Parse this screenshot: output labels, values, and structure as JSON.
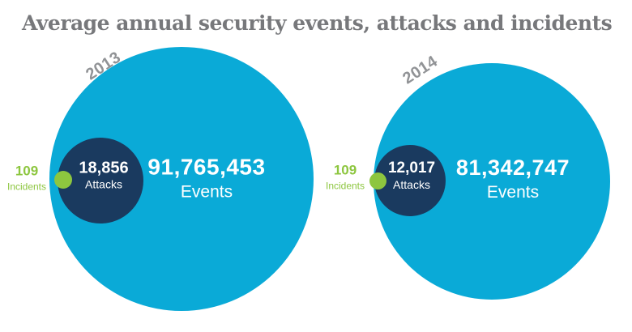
{
  "title": "Average annual security events, attacks and incidents",
  "colors": {
    "events_blue": "#0aaad7",
    "attacks_navy": "#1a3a5f",
    "incidents_green": "#8dc63f",
    "title_gray": "#77787b",
    "year_gray": "#919396",
    "circle_text_white": "#ffffff"
  },
  "chart_data": {
    "type": "bubble",
    "title": "Average annual security events, attacks and incidents",
    "legend_position": "none",
    "grid": false,
    "groups": [
      {
        "year": "2013",
        "events": {
          "value": 91765453,
          "label": "91,765,453",
          "unit": "Events"
        },
        "attacks": {
          "value": 18856,
          "label": "18,856",
          "unit": "Attacks"
        },
        "incidents": {
          "value": 109,
          "label": "109",
          "unit": "Incidents"
        }
      },
      {
        "year": "2014",
        "events": {
          "value": 81342747,
          "label": "81,342,747",
          "unit": "Events"
        },
        "attacks": {
          "value": 12017,
          "label": "12,017",
          "unit": "Attacks"
        },
        "incidents": {
          "value": 109,
          "label": "109",
          "unit": "Incidents"
        }
      }
    ]
  }
}
